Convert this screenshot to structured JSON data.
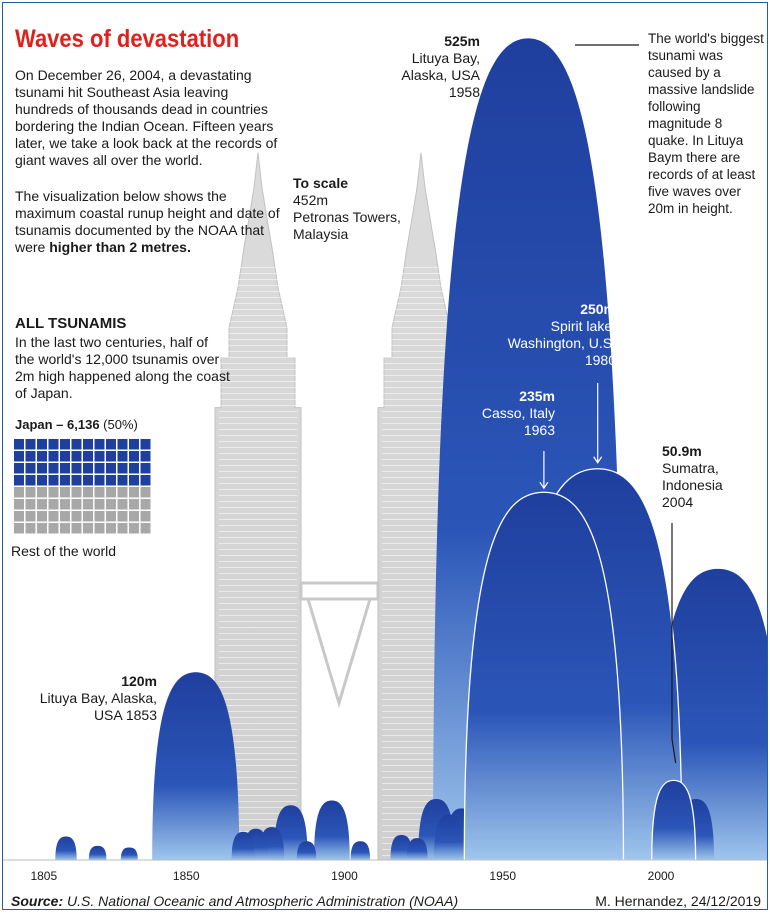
{
  "header": {
    "title": "Waves of devastation",
    "intro": "On December 26, 2004, a devastating tsunami hit Southeast Asia leaving hundreds of thousands dead in countries bordering the Indian Ocean. Fifteen years later, we take a look back at the records of giant waves all over the world.",
    "visualization_note_prefix": "The visualization below shows the maximum coastal runup height and date of tsunamis documented by the NOAA that were ",
    "visualization_note_bold": "higher than 2 metres."
  },
  "all_tsunamis": {
    "heading": "ALL TSUNAMIS",
    "text": "In the last two centuries, half of the world's 12,000 tsunamis over 2m high happened along the coast of Japan.",
    "japan_label_bold": "Japan – 6,136",
    "japan_label_pct": " (50%)",
    "rest_label": "Rest of the world",
    "japan_share": 0.5,
    "japan_color": "#1f3f9e",
    "rest_color": "#a8a8a8"
  },
  "scale": {
    "heading": "To scale",
    "height": "452m",
    "name": "Petronas Towers,",
    "place": "Malaysia"
  },
  "annotations": {
    "a525": {
      "value": "525m",
      "line1": "Lituya Bay,",
      "line2": "Alaska, USA",
      "line3": "1958"
    },
    "a250": {
      "value": "250m",
      "line1": "Spirit lake,",
      "line2": "Washington, U.S.",
      "line3": "1980"
    },
    "a235": {
      "value": "235m",
      "line1": "Casso, Italy",
      "line2": "1963"
    },
    "a509": {
      "value": "50.9m",
      "line1": "Sumatra,",
      "line2": "Indonesia",
      "line3": "2004"
    },
    "a120": {
      "value": "120m",
      "line1": "Lituya Bay, Alaska,",
      "line2": "USA 1853"
    }
  },
  "note": "The world's biggest tsunami was caused by a massive landslide following magnitude 8 quake. In Lituya Baym there are records of at least five waves over 20m in height.",
  "footer": {
    "source_label": "Source:",
    "source_text": " U.S. National Oceanic and Atmospheric Administration (NOAA)",
    "credit": "M. Hernandez, 24/12/2019"
  },
  "chart_data": {
    "type": "area",
    "title": "Waves of devastation",
    "x_label": "",
    "y_label": "Maximum coastal runup height (m)",
    "x_ticks": [
      1805,
      1850,
      1900,
      1950,
      2000
    ],
    "xlim": [
      1800,
      2020
    ],
    "ylim": [
      0,
      560
    ],
    "colors": {
      "wave": "#1f3f9e",
      "wave_light": "#9fc6ec",
      "tower": "#d6d6d6"
    },
    "reference": {
      "name": "Petronas Towers",
      "height": 452
    },
    "waves": [
      {
        "year": 1958,
        "height": 525,
        "label": "Lituya Bay, Alaska, USA"
      },
      {
        "year": 1980,
        "height": 250,
        "label": "Spirit lake, Washington, U.S."
      },
      {
        "year": 1963,
        "height": 235,
        "label": "Casso, Italy"
      },
      {
        "year": 2004,
        "height": 50.9,
        "label": "Sumatra, Indonesia"
      },
      {
        "year": 1853,
        "height": 120,
        "label": "Lituya Bay, Alaska, USA"
      },
      {
        "year": 2018,
        "height": 186
      },
      {
        "year": 1896,
        "height": 38
      },
      {
        "year": 1883,
        "height": 35
      },
      {
        "year": 1929,
        "height": 39
      },
      {
        "year": 1933,
        "height": 29
      },
      {
        "year": 1937,
        "height": 33
      },
      {
        "year": 1946,
        "height": 42
      },
      {
        "year": 1964,
        "height": 67
      },
      {
        "year": 1993,
        "height": 32
      },
      {
        "year": 2011,
        "height": 39
      },
      {
        "year": 1868,
        "height": 18
      },
      {
        "year": 1872,
        "height": 20
      },
      {
        "year": 1877,
        "height": 21
      },
      {
        "year": 1812,
        "height": 15
      },
      {
        "year": 1822,
        "height": 9
      },
      {
        "year": 1832,
        "height": 8
      },
      {
        "year": 1888,
        "height": 12
      },
      {
        "year": 1905,
        "height": 12
      },
      {
        "year": 1918,
        "height": 16
      },
      {
        "year": 1923,
        "height": 14
      },
      {
        "year": 1975,
        "height": 18
      },
      {
        "year": 1998,
        "height": 15
      }
    ]
  }
}
